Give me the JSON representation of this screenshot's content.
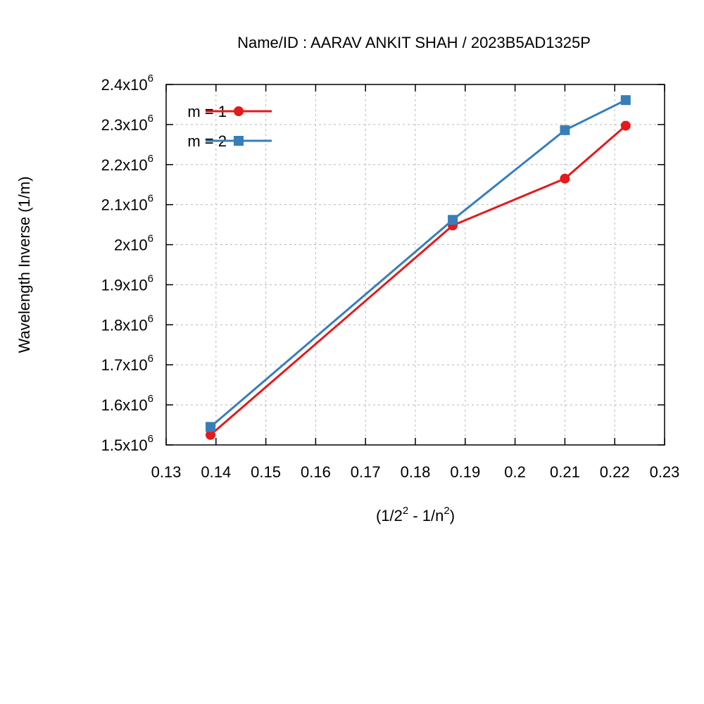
{
  "chart_data": {
    "type": "line",
    "title": "Name/ID : AARAV ANKIT SHAH / 2023B5AD1325P",
    "xlabel": "(1/2² - 1/n²)",
    "ylabel": "Wavelength Inverse (1/m)",
    "xlim": [
      0.13,
      0.23
    ],
    "ylim": [
      1500000,
      2400000
    ],
    "x_ticks": [
      0.13,
      0.14,
      0.15,
      0.16,
      0.17,
      0.18,
      0.19,
      0.2,
      0.21,
      0.22,
      0.23
    ],
    "x_tick_labels": [
      "0.13",
      "0.14",
      "0.15",
      "0.16",
      "0.17",
      "0.18",
      "0.19",
      "0.2",
      "0.21",
      "0.22",
      "0.23"
    ],
    "y_ticks": [
      1500000,
      1600000,
      1700000,
      1800000,
      1900000,
      2000000,
      2100000,
      2200000,
      2300000,
      2400000
    ],
    "y_tick_labels": [
      {
        "mantissa": "1.5x10",
        "exp": "6"
      },
      {
        "mantissa": "1.6x10",
        "exp": "6"
      },
      {
        "mantissa": "1.7x10",
        "exp": "6"
      },
      {
        "mantissa": "1.8x10",
        "exp": "6"
      },
      {
        "mantissa": "1.9x10",
        "exp": "6"
      },
      {
        "mantissa": "2x10",
        "exp": "6"
      },
      {
        "mantissa": "2.1x10",
        "exp": "6"
      },
      {
        "mantissa": "2.2x10",
        "exp": "6"
      },
      {
        "mantissa": "2.3x10",
        "exp": "6"
      },
      {
        "mantissa": "2.4x10",
        "exp": "6"
      }
    ],
    "grid": true,
    "legend_position": "top-left",
    "series": [
      {
        "name": "m = 1",
        "color": "#e41a1c",
        "marker": "circle",
        "x": [
          0.1389,
          0.1875,
          0.21,
          0.2222
        ],
        "y": [
          1525000,
          2048000,
          2165000,
          2297000
        ]
      },
      {
        "name": "m = 2",
        "color": "#377eb8",
        "marker": "square",
        "x": [
          0.1389,
          0.1875,
          0.21,
          0.2222
        ],
        "y": [
          1545000,
          2062000,
          2286000,
          2361000
        ]
      }
    ]
  }
}
